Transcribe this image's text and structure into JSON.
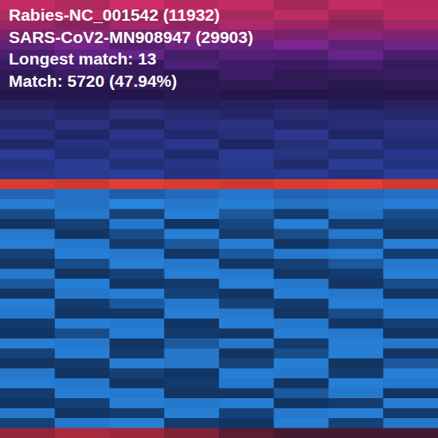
{
  "chart_data": {
    "type": "heatmap",
    "labels": [
      "Rabies-NC_001542 (11932)",
      "SARS-CoV2-MN908947 (29903)",
      "Longest match: 13",
      "Match: 5720 (47.94%)"
    ],
    "zlim": [
      0,
      1
    ],
    "rows": [
      {
        "color": "#d8306a",
        "values": [
          0.9,
          0.8,
          0.95,
          0.85,
          0.9,
          0.75,
          0.9,
          0.85
        ]
      },
      {
        "color": "#d0306a",
        "values": [
          0.85,
          0.9,
          0.7,
          0.9,
          0.8,
          0.9,
          0.75,
          0.9
        ]
      },
      {
        "color": "#c02c70",
        "values": [
          0.8,
          0.7,
          0.85,
          0.75,
          0.9,
          0.8,
          0.7,
          0.85
        ]
      },
      {
        "color": "#a82a88",
        "values": [
          0.7,
          0.8,
          0.65,
          0.85,
          0.75,
          0.7,
          0.8,
          0.75
        ]
      },
      {
        "color": "#9a2ca8",
        "values": [
          0.6,
          0.75,
          0.55,
          0.7,
          0.65,
          0.8,
          0.6,
          0.7
        ]
      },
      {
        "color": "#8c2cb0",
        "values": [
          0.5,
          0.65,
          0.7,
          0.45,
          0.6,
          0.55,
          0.7,
          0.5
        ]
      },
      {
        "color": "#7a2aa8",
        "values": [
          0.45,
          0.55,
          0.4,
          0.6,
          0.5,
          0.45,
          0.55,
          0.4
        ]
      },
      {
        "color": "#6a2898",
        "values": [
          0.4,
          0.5,
          0.45,
          0.35,
          0.55,
          0.4,
          0.45,
          0.5
        ]
      },
      {
        "color": "#4a2070",
        "values": [
          0.6,
          0.5,
          0.7,
          0.55,
          0.6,
          0.65,
          0.5,
          0.6
        ]
      },
      {
        "color": "#3c1c68",
        "values": [
          0.55,
          0.6,
          0.5,
          0.65,
          0.55,
          0.5,
          0.6,
          0.55
        ]
      },
      {
        "color": "#3a2a80",
        "values": [
          0.6,
          0.5,
          0.65,
          0.55,
          0.6,
          0.7,
          0.5,
          0.65
        ]
      },
      {
        "color": "#3a3a98",
        "values": [
          0.7,
          0.6,
          0.75,
          0.65,
          0.55,
          0.7,
          0.65,
          0.6
        ]
      },
      {
        "color": "#3a40a8",
        "values": [
          0.5,
          0.7,
          0.45,
          0.65,
          0.7,
          0.5,
          0.6,
          0.7
        ]
      },
      {
        "color": "#3a44b0",
        "values": [
          0.65,
          0.45,
          0.7,
          0.5,
          0.6,
          0.75,
          0.45,
          0.6
        ]
      },
      {
        "color": "#3a48b8",
        "values": [
          0.45,
          0.6,
          0.55,
          0.7,
          0.4,
          0.55,
          0.7,
          0.5
        ]
      },
      {
        "color": "#3a4cc0",
        "values": [
          0.7,
          0.5,
          0.65,
          0.45,
          0.7,
          0.6,
          0.5,
          0.65
        ]
      },
      {
        "color": "#3a50c0",
        "values": [
          0.55,
          0.7,
          0.5,
          0.6,
          0.65,
          0.45,
          0.7,
          0.55
        ]
      },
      {
        "color": "#3a50c8",
        "values": [
          0.6,
          0.65,
          0.7,
          0.55,
          0.6,
          0.65,
          0.55,
          0.7
        ]
      },
      {
        "color": "#f04030",
        "values": [
          0.9,
          0.85,
          0.95,
          0.9,
          0.85,
          0.9,
          0.95,
          0.85
        ]
      },
      {
        "color": "#2a80e0",
        "values": [
          0.75,
          0.85,
          0.7,
          0.8,
          0.9,
          0.75,
          0.8,
          0.85
        ]
      },
      {
        "color": "#2a8ae8",
        "values": [
          0.9,
          0.8,
          0.95,
          0.85,
          0.9,
          0.8,
          0.85,
          0.9
        ]
      },
      {
        "color": "#2a8ae8",
        "values": [
          0.5,
          0.85,
          0.4,
          0.9,
          0.6,
          0.35,
          0.8,
          0.5
        ]
      },
      {
        "color": "#2a8ae8",
        "values": [
          0.3,
          0.4,
          0.85,
          0.3,
          0.45,
          0.9,
          0.35,
          0.4
        ]
      },
      {
        "color": "#2a8ae8",
        "values": [
          0.85,
          0.3,
          0.5,
          0.9,
          0.35,
          0.5,
          0.85,
          0.3
        ]
      },
      {
        "color": "#2a8ae8",
        "values": [
          0.9,
          0.85,
          0.35,
          0.6,
          0.9,
          0.3,
          0.5,
          0.9
        ]
      },
      {
        "color": "#2a8ae8",
        "values": [
          0.4,
          0.9,
          0.85,
          0.3,
          0.6,
          0.85,
          0.9,
          0.35
        ]
      },
      {
        "color": "#2a8ae8",
        "values": [
          0.3,
          0.5,
          0.9,
          0.85,
          0.3,
          0.4,
          0.6,
          0.85
        ]
      },
      {
        "color": "#2a8ae8",
        "values": [
          0.85,
          0.3,
          0.4,
          0.9,
          0.85,
          0.3,
          0.35,
          0.9
        ]
      },
      {
        "color": "#2a8ae8",
        "values": [
          0.6,
          0.9,
          0.3,
          0.35,
          0.9,
          0.85,
          0.3,
          0.5
        ]
      },
      {
        "color": "#2a8ae8",
        "values": [
          0.3,
          0.85,
          0.9,
          0.4,
          0.3,
          0.9,
          0.85,
          0.3
        ]
      },
      {
        "color": "#2a8ae8",
        "values": [
          0.9,
          0.35,
          0.6,
          0.85,
          0.4,
          0.35,
          0.9,
          0.85
        ]
      },
      {
        "color": "#2a8ae8",
        "values": [
          0.85,
          0.3,
          0.3,
          0.9,
          0.85,
          0.3,
          0.5,
          0.9
        ]
      },
      {
        "color": "#2a8ae8",
        "values": [
          0.35,
          0.9,
          0.85,
          0.3,
          0.9,
          0.85,
          0.3,
          0.4
        ]
      },
      {
        "color": "#2a8ae8",
        "values": [
          0.3,
          0.5,
          0.9,
          0.35,
          0.3,
          0.9,
          0.85,
          0.3
        ]
      },
      {
        "color": "#2a8ae8",
        "values": [
          0.9,
          0.85,
          0.3,
          0.6,
          0.85,
          0.35,
          0.9,
          0.85
        ]
      },
      {
        "color": "#2a8ae8",
        "values": [
          0.4,
          0.9,
          0.35,
          0.85,
          0.3,
          0.5,
          0.9,
          0.3
        ]
      },
      {
        "color": "#2a8ae8",
        "values": [
          0.3,
          0.35,
          0.9,
          0.85,
          0.4,
          0.9,
          0.3,
          0.6
        ]
      },
      {
        "color": "#2a8ae8",
        "values": [
          0.85,
          0.3,
          0.4,
          0.3,
          0.9,
          0.85,
          0.35,
          0.9
        ]
      },
      {
        "color": "#2a8ae8",
        "values": [
          0.9,
          0.85,
          0.3,
          0.35,
          0.85,
          0.3,
          0.9,
          0.85
        ]
      },
      {
        "color": "#2a8ae8",
        "values": [
          0.35,
          0.9,
          0.85,
          0.3,
          0.3,
          0.6,
          0.85,
          0.3
        ]
      },
      {
        "color": "#2a8ae8",
        "values": [
          0.3,
          0.4,
          0.9,
          0.85,
          0.9,
          0.3,
          0.35,
          0.9
        ]
      },
      {
        "color": "#2a8ae8",
        "values": [
          0.85,
          0.3,
          0.35,
          0.9,
          0.4,
          0.85,
          0.9,
          0.35
        ]
      },
      {
        "color": "#2a8ae8",
        "values": [
          0.4,
          0.85,
          0.9,
          0.35,
          0.3,
          0.9,
          0.4,
          0.85
        ]
      },
      {
        "color": "#d03040",
        "values": [
          0.7,
          0.8,
          0.75,
          0.6,
          0.4,
          0.3,
          0.3,
          0.3
        ]
      }
    ]
  }
}
